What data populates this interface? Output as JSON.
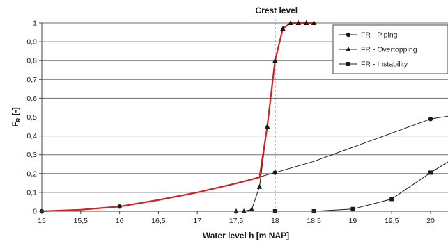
{
  "chart_data": {
    "type": "line",
    "title": "",
    "xlabel": "Water level h [m NAP]",
    "ylabel": "F",
    "ylabel_sub": "R",
    "ylabel_suffix": " [-]",
    "xlim": [
      15,
      20.45
    ],
    "ylim": [
      0,
      1
    ],
    "x_ticks": [
      15,
      15.5,
      16,
      16.5,
      17,
      17.5,
      18,
      18.5,
      19,
      19.5,
      20
    ],
    "x_tick_labels": [
      "15",
      "15,5",
      "16",
      "16,5",
      "17",
      "17,5",
      "18",
      "18,5",
      "19",
      "19,5",
      "20"
    ],
    "y_ticks": [
      0,
      0.1,
      0.2,
      0.3,
      0.4,
      0.5,
      0.6,
      0.7,
      0.8,
      0.9,
      1
    ],
    "y_tick_labels": [
      "0",
      "0,1",
      "0,2",
      "0,3",
      "0,4",
      "0,5",
      "0,6",
      "0,7",
      "0,8",
      "0,9",
      "1"
    ],
    "grid": "horizontal",
    "legend_position": "top-right",
    "annotation": {
      "text": "Crest level",
      "x": 18
    },
    "series": [
      {
        "name": "FR - Piping",
        "marker": "circle",
        "color": "#1a1a1a",
        "x": [
          15,
          15.5,
          16,
          16.5,
          17,
          17.5,
          18,
          18.5,
          19,
          19.5,
          20,
          20.45
        ],
        "y": [
          0,
          0.008,
          0.025,
          0.06,
          0.1,
          0.148,
          0.205,
          0.265,
          0.34,
          0.415,
          0.49,
          0.52
        ],
        "marked_x": [
          15,
          16,
          18,
          20
        ]
      },
      {
        "name": "FR - Overtopping",
        "marker": "triangle",
        "color": "#1a1a1a",
        "x": [
          17.5,
          17.6,
          17.7,
          17.8,
          17.9,
          18,
          18.1,
          18.2,
          18.3,
          18.4,
          18.5
        ],
        "y": [
          0,
          0,
          0.01,
          0.13,
          0.45,
          0.8,
          0.97,
          1,
          1,
          1,
          1
        ],
        "marked_x": [
          17.5,
          17.6,
          17.7,
          17.8,
          17.9,
          18,
          18.1,
          18.2,
          18.3,
          18.4,
          18.5
        ]
      },
      {
        "name": "FR - Instability",
        "marker": "square",
        "color": "#1a1a1a",
        "x": [
          18,
          18.5,
          19,
          19.5,
          20,
          20.45
        ],
        "y": [
          0,
          0,
          0.012,
          0.065,
          0.205,
          0.32
        ],
        "marked_x": [
          18,
          18.5,
          19,
          19.5,
          20
        ]
      }
    ],
    "combined_curve": {
      "color": "#d62020",
      "x": [
        15,
        15.5,
        16,
        16.5,
        17,
        17.5,
        17.8,
        17.9,
        18,
        18.1,
        18.2,
        18.3,
        18.4,
        18.5
      ],
      "y": [
        0,
        0.008,
        0.025,
        0.06,
        0.1,
        0.148,
        0.18,
        0.45,
        0.8,
        0.97,
        1,
        1,
        1,
        1
      ]
    }
  }
}
